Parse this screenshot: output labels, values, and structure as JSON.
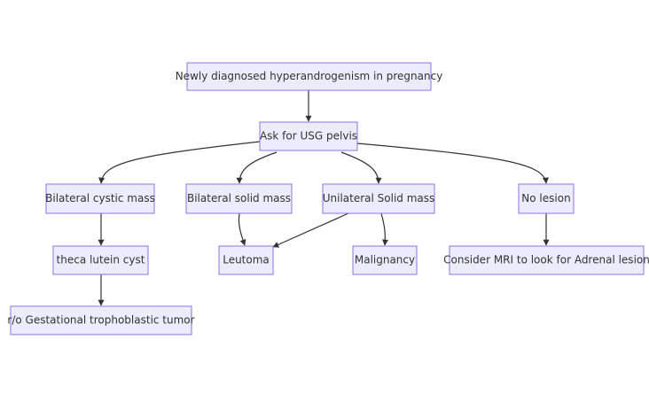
{
  "diagram": {
    "type": "flowchart",
    "direction": "top-down",
    "node_fill": "#ECECFF",
    "node_border": "#9370DB",
    "edge_color": "#333333",
    "text_color": "#333333",
    "nodes": {
      "root": "Newly diagnosed hyperandrogenism in pregnancy",
      "usg": "Ask for USG pelvis",
      "bilateral_cystic": "Bilateral cystic mass",
      "bilateral_solid": "Bilateral solid mass",
      "unilateral_solid": "Unilateral Solid mass",
      "no_lesion": "No lesion",
      "theca_lutein": "theca lutein cyst",
      "leutoma": "Leutoma",
      "malignancy": "Malignancy",
      "consider_mri": "Consider MRI to look for Adrenal lesion",
      "gestational": "r/o Gestational trophoblastic tumor"
    },
    "edges": [
      {
        "from": "root",
        "to": "usg"
      },
      {
        "from": "usg",
        "to": "bilateral_cystic"
      },
      {
        "from": "usg",
        "to": "bilateral_solid"
      },
      {
        "from": "usg",
        "to": "unilateral_solid"
      },
      {
        "from": "usg",
        "to": "no_lesion"
      },
      {
        "from": "bilateral_cystic",
        "to": "theca_lutein"
      },
      {
        "from": "theca_lutein",
        "to": "gestational"
      },
      {
        "from": "bilateral_solid",
        "to": "leutoma"
      },
      {
        "from": "unilateral_solid",
        "to": "leutoma"
      },
      {
        "from": "unilateral_solid",
        "to": "malignancy"
      },
      {
        "from": "no_lesion",
        "to": "consider_mri"
      }
    ]
  }
}
